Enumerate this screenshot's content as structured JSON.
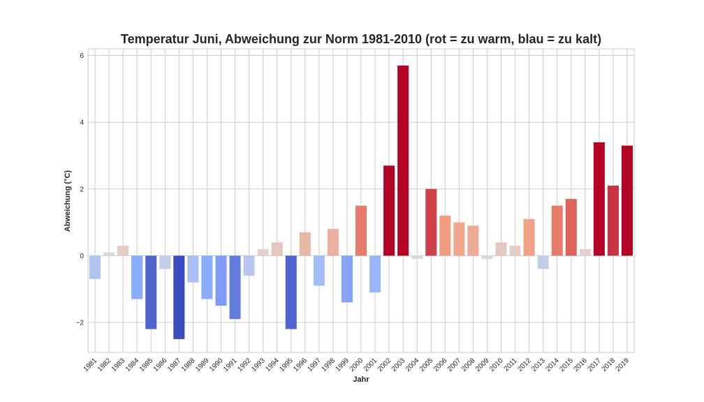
{
  "chart_data": {
    "type": "bar",
    "title": "Temperatur Juni, Abweichung zur Norm 1981-2010 (rot = zu warm, blau = zu kalt)",
    "xlabel": "Jahr",
    "ylabel": "Abweichung (°C)",
    "ylim": [
      -2.9,
      6.2
    ],
    "yticks": [
      -2,
      0,
      2,
      4,
      6
    ],
    "grid": true,
    "colormap": "coolwarm",
    "color_range": [
      -2.5,
      2.5
    ],
    "categories": [
      "1981",
      "1982",
      "1983",
      "1984",
      "1985",
      "1986",
      "1987",
      "1988",
      "1989",
      "1990",
      "1991",
      "1992",
      "1993",
      "1994",
      "1995",
      "1996",
      "1997",
      "1998",
      "1999",
      "2000",
      "2001",
      "2002",
      "2003",
      "2004",
      "2005",
      "2006",
      "2007",
      "2008",
      "2009",
      "2010",
      "2011",
      "2012",
      "2013",
      "2014",
      "2015",
      "2016",
      "2017",
      "2018",
      "2019"
    ],
    "values": [
      -0.7,
      0.1,
      0.3,
      -1.3,
      -2.2,
      -0.4,
      -2.5,
      -0.8,
      -1.3,
      -1.5,
      -1.9,
      -0.6,
      0.2,
      0.4,
      -2.2,
      0.7,
      -0.9,
      0.8,
      -1.4,
      1.5,
      -1.1,
      2.7,
      5.7,
      -0.1,
      2.0,
      1.2,
      1.0,
      0.9,
      -0.1,
      0.4,
      0.3,
      1.1,
      -0.4,
      1.5,
      1.7,
      0.2,
      3.4,
      2.1,
      3.3
    ]
  }
}
